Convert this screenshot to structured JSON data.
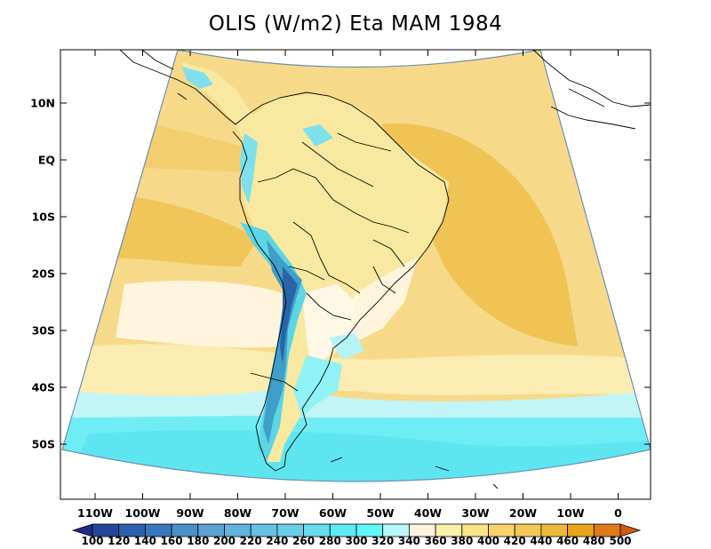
{
  "title": "OLIS (W/m2) Eta MAM 1984",
  "map": {
    "lat_ticks": [
      "10N",
      "EQ",
      "10S",
      "20S",
      "30S",
      "40S",
      "50S"
    ],
    "lon_ticks": [
      "110W",
      "100W",
      "90W",
      "80W",
      "70W",
      "60W",
      "50W",
      "40W",
      "30W",
      "20W",
      "10W",
      "0"
    ],
    "lon_range": [
      -117,
      6
    ],
    "lat_range": [
      -60,
      17
    ]
  },
  "colorbar": {
    "levels": [
      "100",
      "120",
      "140",
      "160",
      "180",
      "200",
      "220",
      "240",
      "260",
      "280",
      "300",
      "320",
      "340",
      "360",
      "380",
      "400",
      "420",
      "440",
      "460",
      "480",
      "500"
    ],
    "colors": [
      "#1e2d82",
      "#23459a",
      "#2d5fae",
      "#3a78bd",
      "#4a8fca",
      "#5aa3d3",
      "#62b4dc",
      "#66c2e3",
      "#68cfe8",
      "#66dcee",
      "#5eeaf2",
      "#62f6f8",
      "#b8f8fa",
      "#fff4e0",
      "#fbf0a8",
      "#f9e586",
      "#f5d56c",
      "#f2c956",
      "#eeb93a",
      "#e8a51c",
      "#de7a1a",
      "#d25a0c"
    ]
  },
  "colors": {
    "land_outline": "#000000",
    "frame": "#000000"
  }
}
